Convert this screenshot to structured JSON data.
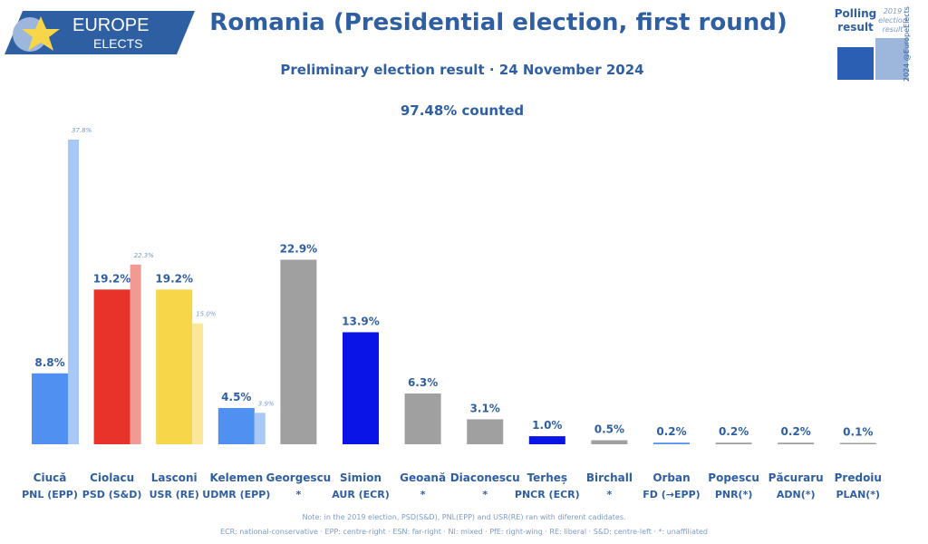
{
  "brand": {
    "line1": "EUROPE",
    "line2": "ELECTS"
  },
  "header": {
    "title": "Romania (Presidential election, first round)",
    "subtitle": "Preliminary election result · 24 November 2024",
    "counted": "97.48% counted"
  },
  "legend": {
    "current_label": "Polling result",
    "previous_label": "2019 election result",
    "current_color": "#2b5fb3",
    "previous_color": "#9db6dc"
  },
  "credit": "2024 @EuropeElects",
  "chart_data": {
    "type": "bar",
    "ylim": [
      0,
      40
    ],
    "grid": false,
    "candidates": [
      {
        "name": "Ciucă",
        "party": "PNL (EPP)",
        "value": 8.8,
        "label": "8.8%",
        "prev": 37.8,
        "prev_label": "37.8%",
        "color": "#4f90f0",
        "prev_color": "#a8c8f8"
      },
      {
        "name": "Ciolacu",
        "party": "PSD (S&D)",
        "value": 19.2,
        "label": "19.2%",
        "prev": 22.3,
        "prev_label": "22.3%",
        "color": "#e8332a",
        "prev_color": "#f19a94"
      },
      {
        "name": "Lasconi",
        "party": "USR (RE)",
        "value": 19.2,
        "label": "19.2%",
        "prev": 15.0,
        "prev_label": "15.0%",
        "color": "#f7d64a",
        "prev_color": "#fae79a"
      },
      {
        "name": "Kelemen",
        "party": "UDMR (EPP)",
        "value": 4.5,
        "label": "4.5%",
        "prev": 3.9,
        "prev_label": "3.9%",
        "color": "#4f90f0",
        "prev_color": "#a8c8f8"
      },
      {
        "name": "Georgescu",
        "party": "*",
        "value": 22.9,
        "label": "22.9%",
        "color": "#a0a0a0"
      },
      {
        "name": "Simion",
        "party": "AUR (ECR)",
        "value": 13.9,
        "label": "13.9%",
        "color": "#0a14e6"
      },
      {
        "name": "Geoană",
        "party": "*",
        "value": 6.3,
        "label": "6.3%",
        "color": "#a0a0a0"
      },
      {
        "name": "Diaconescu",
        "party": "*",
        "value": 3.1,
        "label": "3.1%",
        "color": "#a0a0a0"
      },
      {
        "name": "Terheș",
        "party": "PNCR (ECR)",
        "value": 1.0,
        "label": "1.0%",
        "color": "#0a14e6"
      },
      {
        "name": "Birchall",
        "party": "*",
        "value": 0.5,
        "label": "0.5%",
        "color": "#a0a0a0"
      },
      {
        "name": "Orban",
        "party": "FD (→EPP)",
        "value": 0.2,
        "label": "0.2%",
        "color": "#4f90f0"
      },
      {
        "name": "Popescu",
        "party": "PNR(*)",
        "value": 0.2,
        "label": "0.2%",
        "color": "#a0a0a0"
      },
      {
        "name": "Păcuraru",
        "party": "ADN(*)",
        "value": 0.2,
        "label": "0.2%",
        "color": "#a0a0a0"
      },
      {
        "name": "Predoiu",
        "party": "PLAN(*)",
        "value": 0.1,
        "label": "0.1%",
        "color": "#a0a0a0"
      }
    ]
  },
  "notes": {
    "line1": "Note: in the 2019 election, PSD(S&D), PNL(EPP) and USR(RE) ran with diferent cadidates.",
    "line2": "ECR: national-conservative · EPP: centre-right · ESN: far-right · NI: mixed · PfE: right-wing · RE: liberal · S&D: centre-left · *: unaffiliated"
  }
}
